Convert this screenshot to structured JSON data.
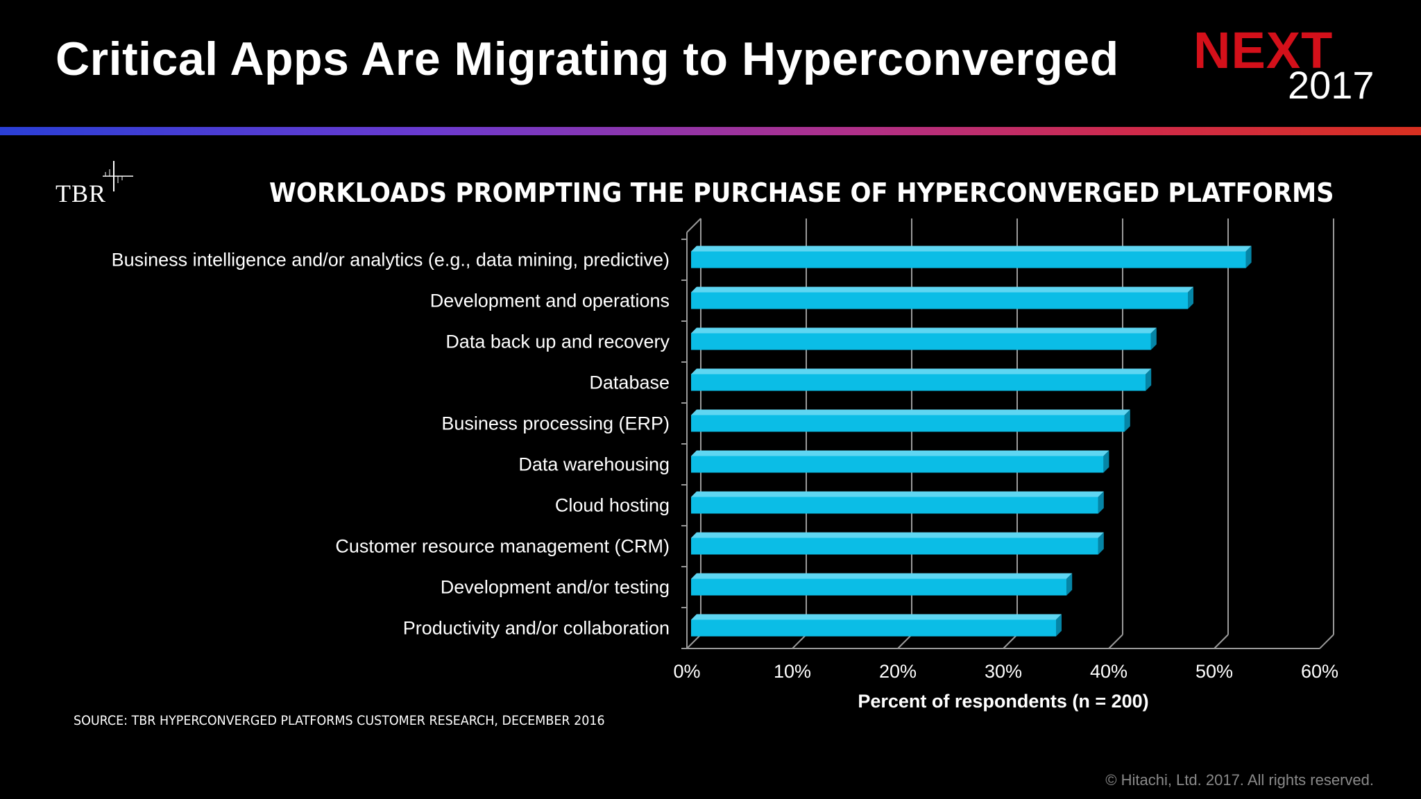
{
  "slide": {
    "title": "Critical Apps Are Migrating to Hyperconverged",
    "brand_next": "NEXT",
    "brand_year": "2017",
    "logo_text": "TBR",
    "source": "SOURCE: TBR HYPERCONVERGED PLATFORMS CUSTOMER RESEARCH, DECEMBER 2016",
    "copyright": "© Hitachi, Ltd. 2017. All rights reserved."
  },
  "colors": {
    "bar": "#0bbde6",
    "bar_top": "#5fd6f2",
    "bar_side": "#0585a6",
    "brand_red": "#d4101a",
    "grid": "#9a9a9a"
  },
  "chart_data": {
    "type": "bar",
    "orientation": "horizontal",
    "title": "WORKLOADS PROMPTING THE PURCHASE OF HYPERCONVERGED PLATFORMS",
    "xlabel": "Percent of respondents (n = 200)",
    "ylabel": "",
    "xlim": [
      0,
      60
    ],
    "xticks": [
      "0%",
      "10%",
      "20%",
      "30%",
      "40%",
      "50%",
      "60%"
    ],
    "grid": true,
    "categories": [
      "Business intelligence and/or analytics (e.g., data mining, predictive)",
      "Development and operations",
      "Data back up and recovery",
      "Database",
      "Business processing (ERP)",
      "Data warehousing",
      "Cloud hosting",
      "Customer resource management (CRM)",
      "Development and/or testing",
      "Productivity and/or collaboration"
    ],
    "values": [
      53,
      47.5,
      44,
      43.5,
      41.5,
      39.5,
      39,
      39,
      36,
      35
    ]
  }
}
